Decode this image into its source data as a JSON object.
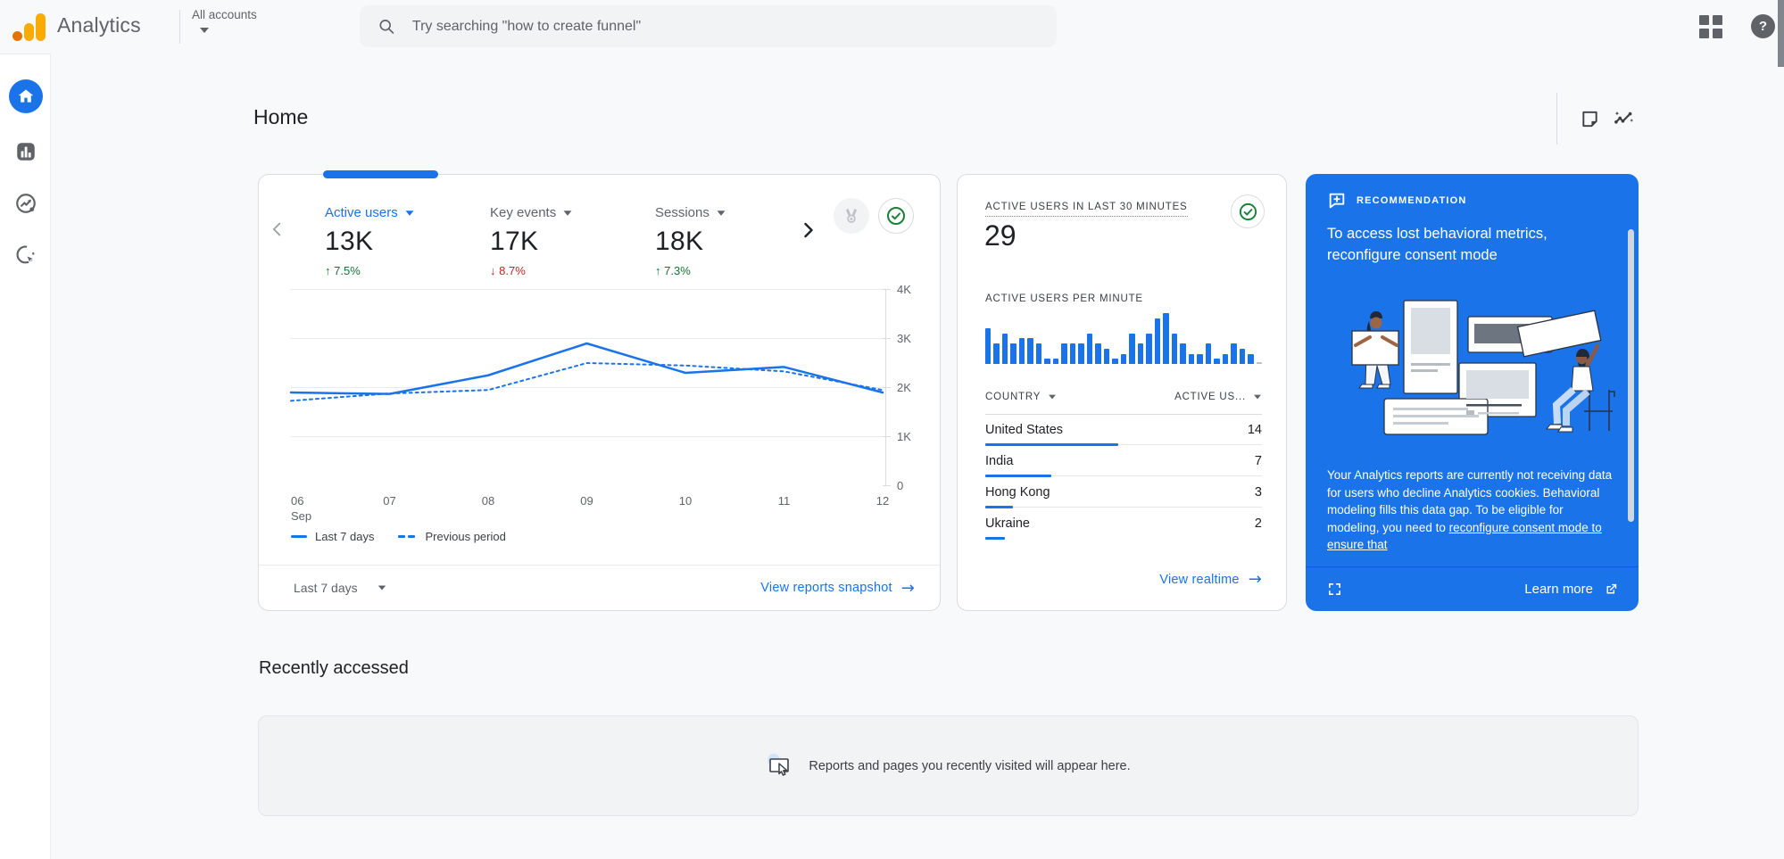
{
  "colors": {
    "accent": "#1a73e8",
    "positive": "#137333",
    "negative": "#c5221f",
    "recommendation_bg": "#1a73e8"
  },
  "header": {
    "app_name": "Analytics",
    "account_switcher": "All accounts",
    "search_placeholder": "Try searching \"how to create funnel\""
  },
  "sidebar": {
    "items": [
      {
        "id": "home",
        "icon": "home-icon",
        "active": true
      },
      {
        "id": "reports",
        "icon": "bar-chart-icon",
        "active": false
      },
      {
        "id": "explore",
        "icon": "explore-icon",
        "active": false
      },
      {
        "id": "advertising",
        "icon": "advertising-icon",
        "active": false
      }
    ]
  },
  "page": {
    "title": "Home"
  },
  "overview_card": {
    "metrics": [
      {
        "label": "Active users",
        "value": "13K",
        "change": "7.5%",
        "direction": "up",
        "selected": true
      },
      {
        "label": "Key events",
        "value": "17K",
        "change": "8.7%",
        "direction": "down",
        "selected": false
      },
      {
        "label": "Sessions",
        "value": "18K",
        "change": "7.3%",
        "direction": "up",
        "selected": false
      }
    ],
    "date_range_label": "Last 7 days",
    "view_link": "View reports snapshot"
  },
  "chart_data": [
    {
      "type": "line",
      "title": "Active users trend",
      "x": [
        "06 Sep",
        "07",
        "08",
        "09",
        "10",
        "11",
        "12"
      ],
      "series": [
        {
          "name": "Last 7 days",
          "style": "solid",
          "values": [
            1900,
            1870,
            2250,
            2900,
            2300,
            2420,
            1900
          ]
        },
        {
          "name": "Previous period",
          "style": "dashed",
          "values": [
            1730,
            1880,
            1950,
            2500,
            2450,
            2330,
            1950
          ]
        }
      ],
      "ylim": [
        0,
        4000
      ],
      "yticks": [
        {
          "v": 4000,
          "label": "4K"
        },
        {
          "v": 3000,
          "label": "3K"
        },
        {
          "v": 2000,
          "label": "2K"
        },
        {
          "v": 1000,
          "label": "1K"
        },
        {
          "v": 0,
          "label": "0"
        }
      ],
      "grid": true,
      "legend_position": "bottom"
    },
    {
      "type": "bar",
      "title": "Active users per minute",
      "values": [
        7,
        4,
        6,
        4,
        5,
        5,
        4,
        1,
        1,
        4,
        4,
        4,
        6,
        4,
        3,
        1,
        2,
        6,
        4,
        6,
        9,
        10,
        6,
        4,
        2,
        2,
        4,
        1,
        2,
        4,
        3,
        2,
        0
      ],
      "ymax": 10
    }
  ],
  "realtime_card": {
    "title": "ACTIVE USERS IN LAST 30 MINUTES",
    "value": "29",
    "per_minute_label": "ACTIVE USERS PER MINUTE",
    "columns": {
      "country": "COUNTRY",
      "active_users": "ACTIVE US..."
    },
    "countries": [
      {
        "name": "United States",
        "value": "14",
        "pct": 48
      },
      {
        "name": "India",
        "value": "7",
        "pct": 24
      },
      {
        "name": "Hong Kong",
        "value": "3",
        "pct": 10
      },
      {
        "name": "Ukraine",
        "value": "2",
        "pct": 7
      }
    ],
    "view_link": "View realtime"
  },
  "recommendation_card": {
    "tag": "RECOMMENDATION",
    "title": "To access lost behavioral metrics, reconfigure consent mode",
    "body": "Your Analytics reports are currently not receiving data for users who decline Analytics cookies. Behavioral modeling fills this data gap. To be eligible for modeling, you need to ",
    "body_link": "reconfigure consent mode to ensure that",
    "learn_more": "Learn more"
  },
  "recently_accessed": {
    "title": "Recently accessed",
    "empty_message": "Reports and pages you recently visited will appear here."
  }
}
